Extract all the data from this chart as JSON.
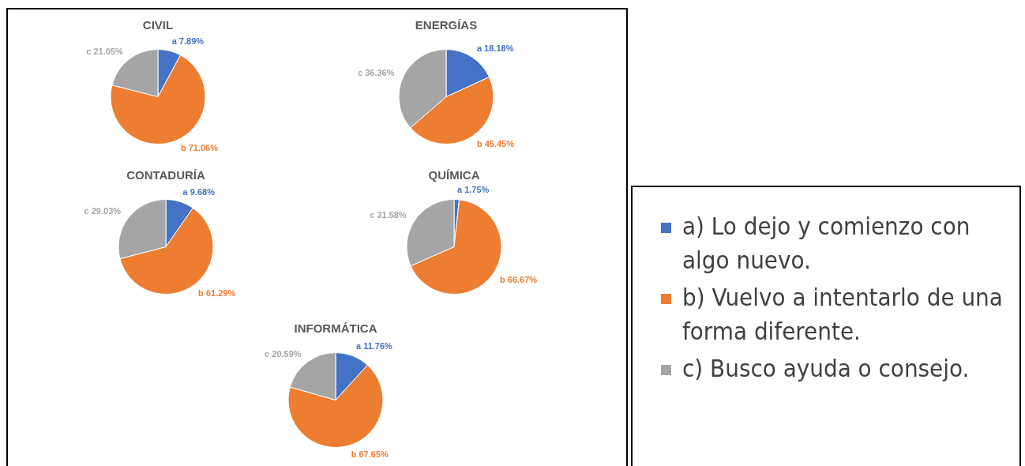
{
  "chart_data": [
    {
      "type": "pie",
      "title": "CIVIL",
      "categories": [
        "a) Lo dejo y comienzo con algo nuevo.",
        "b) Vuelvo a intentarlo de una forma diferente.",
        "c) Busco ayuda o consejo."
      ],
      "values": [
        7.89,
        71.06,
        21.05
      ],
      "colors": [
        "#4472c4",
        "#ed7d31",
        "#a5a5a5"
      ],
      "value_labels": [
        "a 7.89%",
        "b 71.06%",
        "c 21.05%"
      ],
      "legend": "right"
    },
    {
      "type": "pie",
      "title": "ENERGÍAS",
      "categories": [
        null,
        null,
        null
      ],
      "values": [
        18.18,
        45.45,
        36.36
      ],
      "colors": [
        "#4472c4",
        "#ed7d31",
        "#a5a5a5"
      ],
      "value_labels": [
        "a 18.18%",
        "b 45.45%",
        "c 36.36%"
      ]
    },
    {
      "type": "pie",
      "title": "CONTADURÍA",
      "categories": [
        null,
        null,
        null
      ],
      "values": [
        9.68,
        61.29,
        29.03
      ],
      "colors": [
        "#4472c4",
        "#ed7d31",
        "#a5a5a5"
      ],
      "value_labels": [
        "a 9.68%",
        "b 61.29%",
        "c 29.03%"
      ]
    },
    {
      "type": "pie",
      "title": "QUÍMICA",
      "categories": [
        null,
        null,
        null
      ],
      "values": [
        1.75,
        66.67,
        31.58
      ],
      "colors": [
        "#4472c4",
        "#ed7d31",
        "#a5a5a5"
      ],
      "value_labels": [
        "a 1.75%",
        "b 66.67%",
        "c 31.58%"
      ]
    },
    {
      "type": "pie",
      "title": "INFORMÁTICA",
      "categories": [
        null,
        null,
        null
      ],
      "values": [
        11.76,
        67.65,
        20.59
      ],
      "colors": [
        "#4472c4",
        "#ed7d31",
        "#a5a5a5"
      ],
      "value_labels": [
        "a 11.76%",
        "b 67.65%",
        "c 20.59%"
      ]
    }
  ]
}
